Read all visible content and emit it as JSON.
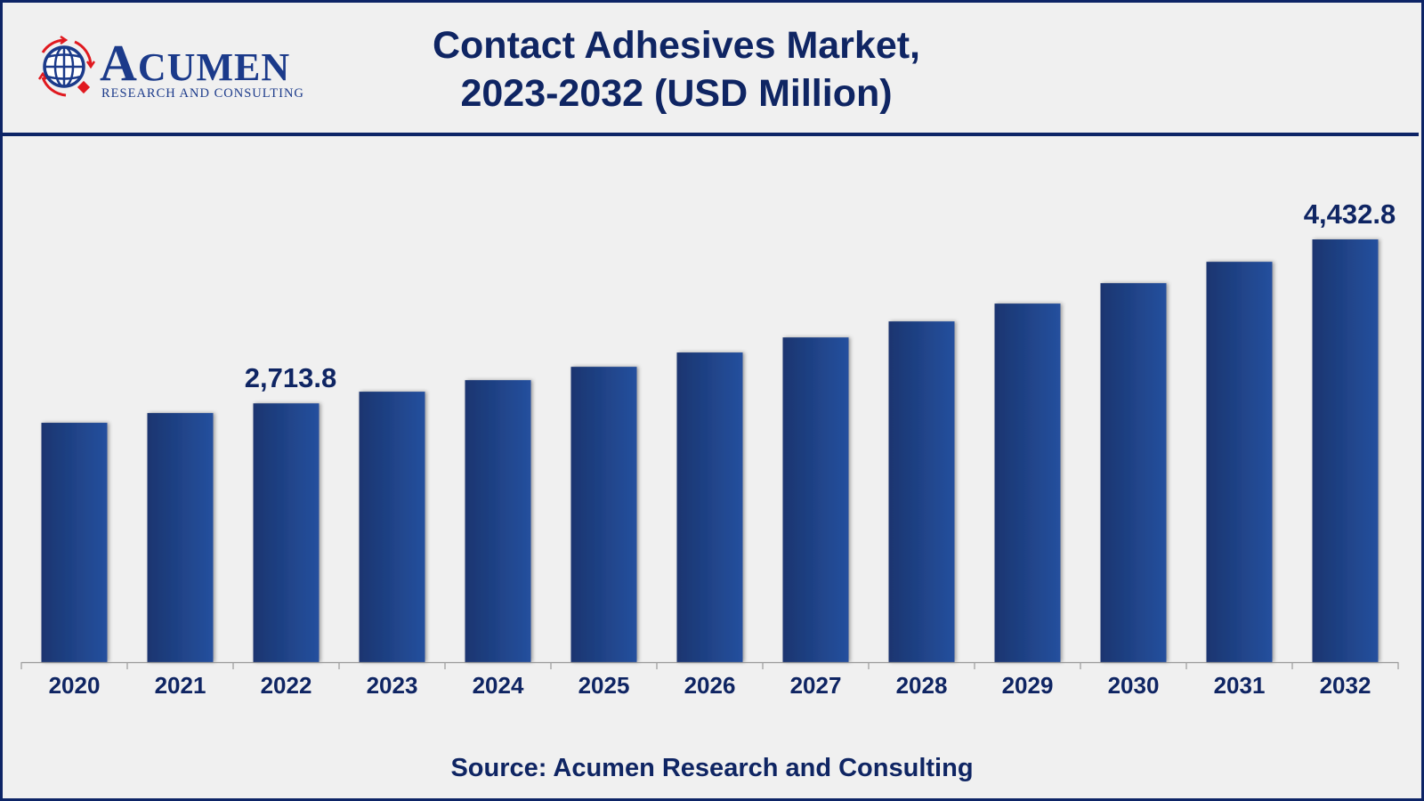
{
  "header": {
    "logo": {
      "brand_initial": "A",
      "brand_rest": "CUMEN",
      "tagline": "RESEARCH AND CONSULTING",
      "icon": "globe-icon"
    },
    "title_line1": "Contact Adhesives Market,",
    "title_line2": "2023-2032 (USD Million)"
  },
  "footer": {
    "source": "Source: Acumen Research and Consulting"
  },
  "colors": {
    "frame": "#0d2466",
    "text": "#0f2563",
    "bar_dark": "#1a3570",
    "bar_light": "#25509e",
    "background": "#f0f0f0",
    "logo_red": "#e0191f"
  },
  "chart_data": {
    "type": "bar",
    "title": "Contact Adhesives Market, 2023-2032 (USD Million)",
    "xlabel": "",
    "ylabel": "USD Million",
    "categories": [
      "2020",
      "2021",
      "2022",
      "2023",
      "2024",
      "2025",
      "2026",
      "2027",
      "2028",
      "2029",
      "2030",
      "2031",
      "2032"
    ],
    "values": [
      2510,
      2612,
      2713.8,
      2836,
      2957,
      3097,
      3247,
      3405,
      3573,
      3760,
      3974,
      4198,
      4432.8
    ],
    "data_labels": [
      {
        "category": "2022",
        "text": "2,713.8"
      },
      {
        "category": "2032",
        "text": "4,432.8"
      }
    ],
    "ylim": [
      0,
      4432.8
    ],
    "grid": false,
    "legend": "none",
    "source": "Source: Acumen Research and Consulting"
  }
}
